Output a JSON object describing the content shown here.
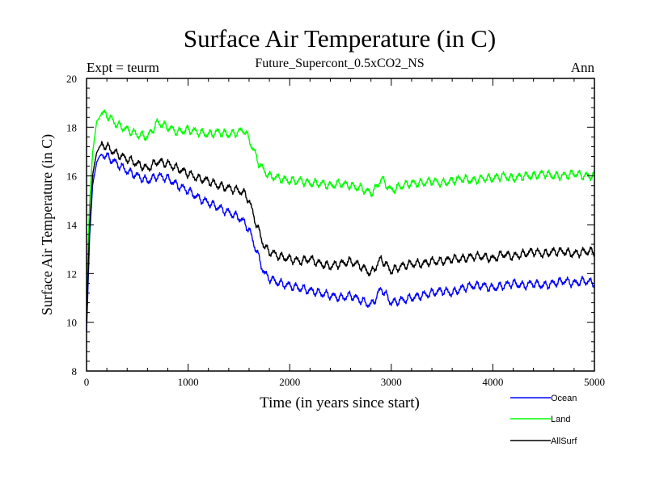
{
  "chart_data": {
    "type": "line",
    "title": "Surface Air Temperature (in C)",
    "subtitle": "Future_Supercont_0.5xCO2_NS",
    "left_label": "Expt = teurm",
    "right_label": "Ann",
    "xlabel": "Time (in years since start)",
    "ylabel": "Surface Air Temperature (in C)",
    "xlim": [
      0,
      5000
    ],
    "ylim": [
      8,
      20
    ],
    "xticks": [
      0,
      1000,
      2000,
      3000,
      4000,
      5000
    ],
    "yticks": [
      8,
      10,
      12,
      14,
      16,
      18,
      20
    ],
    "grid": false,
    "legend_position": "bottom-right",
    "series": [
      {
        "name": "Ocean",
        "color": "#0000ff",
        "x": [
          0,
          30,
          60,
          100,
          150,
          200,
          300,
          400,
          500,
          600,
          700,
          800,
          900,
          1000,
          1100,
          1200,
          1300,
          1400,
          1500,
          1550,
          1600,
          1650,
          1700,
          1750,
          1800,
          1900,
          2000,
          2100,
          2200,
          2300,
          2400,
          2500,
          2600,
          2700,
          2800,
          2850,
          2900,
          3000,
          3100,
          3200,
          3300,
          3400,
          3500,
          3600,
          3700,
          3800,
          3900,
          4000,
          4100,
          4200,
          4300,
          4400,
          4500,
          4600,
          4700,
          4800,
          4900,
          5000
        ],
        "y": [
          9.6,
          13.5,
          15.6,
          16.6,
          16.9,
          16.8,
          16.5,
          16.2,
          16.0,
          15.8,
          16.0,
          15.9,
          15.6,
          15.4,
          15.1,
          14.9,
          14.7,
          14.5,
          14.3,
          14.1,
          13.8,
          13.2,
          12.6,
          12.0,
          11.8,
          11.6,
          11.5,
          11.4,
          11.3,
          11.2,
          11.1,
          11.0,
          11.1,
          10.9,
          10.7,
          11.0,
          11.4,
          10.8,
          10.9,
          11.0,
          11.1,
          11.2,
          11.3,
          11.2,
          11.4,
          11.5,
          11.5,
          11.4,
          11.5,
          11.6,
          11.5,
          11.6,
          11.5,
          11.6,
          11.7,
          11.6,
          11.7,
          11.6
        ]
      },
      {
        "name": "Land",
        "color": "#00ff00",
        "x": [
          0,
          30,
          60,
          100,
          150,
          200,
          300,
          400,
          500,
          600,
          700,
          800,
          900,
          1000,
          1100,
          1200,
          1300,
          1400,
          1500,
          1550,
          1600,
          1650,
          1700,
          1750,
          1800,
          1900,
          2000,
          2100,
          2200,
          2300,
          2400,
          2500,
          2600,
          2700,
          2800,
          2850,
          2900,
          3000,
          3100,
          3200,
          3300,
          3400,
          3500,
          3600,
          3700,
          3800,
          3900,
          4000,
          4100,
          4200,
          4300,
          4400,
          4500,
          4600,
          4700,
          4800,
          4900,
          5000
        ],
        "y": [
          11.2,
          14.8,
          17.0,
          18.2,
          18.6,
          18.5,
          18.1,
          17.9,
          17.7,
          17.6,
          18.2,
          18.0,
          17.8,
          17.9,
          17.8,
          17.7,
          17.8,
          17.7,
          17.8,
          17.9,
          17.5,
          17.0,
          16.5,
          16.2,
          16.0,
          15.9,
          15.8,
          15.8,
          15.7,
          15.7,
          15.6,
          15.7,
          15.6,
          15.5,
          15.3,
          15.5,
          15.9,
          15.4,
          15.6,
          15.7,
          15.7,
          15.8,
          15.7,
          15.8,
          15.9,
          15.8,
          15.9,
          15.9,
          16.0,
          15.9,
          16.0,
          16.0,
          16.1,
          16.0,
          16.0,
          16.1,
          16.0,
          16.0
        ]
      },
      {
        "name": "AllSurf",
        "color": "#000000",
        "x": [
          0,
          30,
          60,
          100,
          150,
          200,
          300,
          400,
          500,
          600,
          700,
          800,
          900,
          1000,
          1100,
          1200,
          1300,
          1400,
          1500,
          1550,
          1600,
          1650,
          1700,
          1750,
          1800,
          1900,
          2000,
          2100,
          2200,
          2300,
          2400,
          2500,
          2600,
          2700,
          2800,
          2850,
          2900,
          3000,
          3100,
          3200,
          3300,
          3400,
          3500,
          3600,
          3700,
          3800,
          3900,
          4000,
          4100,
          4200,
          4300,
          4400,
          4500,
          4600,
          4700,
          4800,
          4900,
          5000
        ],
        "y": [
          10.0,
          13.9,
          16.0,
          17.0,
          17.3,
          17.2,
          16.9,
          16.7,
          16.5,
          16.3,
          16.6,
          16.5,
          16.3,
          16.1,
          15.9,
          15.8,
          15.6,
          15.5,
          15.4,
          15.3,
          15.0,
          14.3,
          13.7,
          13.1,
          12.9,
          12.7,
          12.6,
          12.5,
          12.6,
          12.4,
          12.3,
          12.4,
          12.5,
          12.3,
          12.0,
          12.3,
          12.6,
          12.1,
          12.3,
          12.4,
          12.4,
          12.5,
          12.5,
          12.6,
          12.6,
          12.7,
          12.7,
          12.6,
          12.8,
          12.7,
          12.8,
          12.9,
          12.8,
          12.9,
          12.9,
          12.8,
          12.9,
          12.9
        ]
      }
    ]
  }
}
